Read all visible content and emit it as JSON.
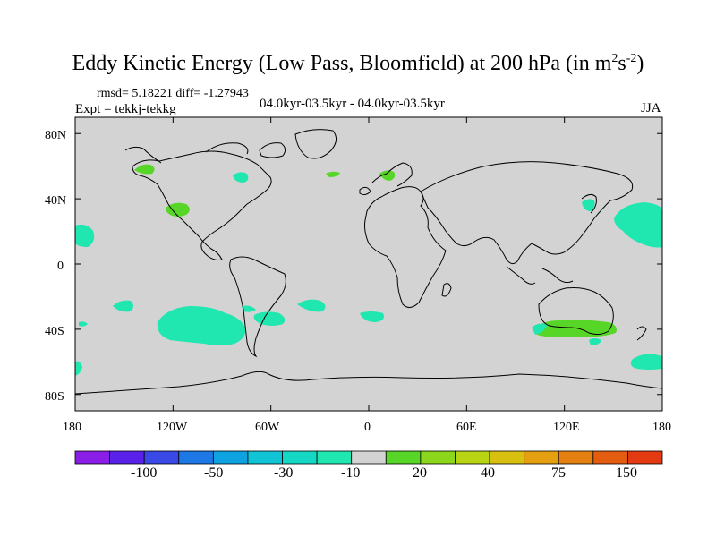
{
  "title": {
    "main": "Eddy Kinetic Energy (Low Pass, Bloomfield) at 200 hPa (in m",
    "sup1": "2",
    "mid": "s",
    "sup2": "-2",
    "end": ")"
  },
  "stats": "rmsd= 5.18221 diff= -1.27943",
  "expt": "Expt = tekkj-tekkg",
  "periods": "04.0kyr-03.5kyr - 04.0kyr-03.5kyr",
  "season": "JJA",
  "map": {
    "lon_range": [
      -180,
      180
    ],
    "lat_range": [
      -90,
      90
    ],
    "background_color": "#d3d3d3",
    "lat_labels": [
      "80N",
      "40N",
      "0",
      "40S",
      "80S"
    ],
    "lon_labels": [
      "180",
      "120W",
      "60W",
      "0",
      "60E",
      "120E",
      "180"
    ]
  },
  "colorbar": {
    "colors": [
      "#8a1ee6",
      "#5a22e8",
      "#3a48e6",
      "#1d78e6",
      "#0ea2e0",
      "#10c4d6",
      "#14d8c4",
      "#20e6b0",
      "#d3d3d3",
      "#58d628",
      "#8cd61c",
      "#b8d414",
      "#d8c010",
      "#e4a010",
      "#e48010",
      "#e45c10",
      "#e43a12"
    ],
    "labels": [
      "-100",
      "-50",
      "-30",
      "-10",
      "20",
      "40",
      "75",
      "150"
    ]
  },
  "regions": [
    {
      "name": "n-pacific-east",
      "level": -10,
      "color": "#20e6b0",
      "lon": -175,
      "lat": 22
    },
    {
      "name": "alaska",
      "level": 20,
      "color": "#58d628",
      "lon": -140,
      "lat": 60
    },
    {
      "name": "california",
      "level": 20,
      "color": "#58d628",
      "lon": -120,
      "lat": 36
    },
    {
      "name": "canada-east",
      "level": -10,
      "color": "#20e6b0",
      "lon": -78,
      "lat": 55
    },
    {
      "name": "n-atlantic",
      "level": 20,
      "color": "#58d628",
      "lon": -23,
      "lat": 57
    },
    {
      "name": "scandinavia",
      "level": 20,
      "color": "#58d628",
      "lon": 12,
      "lat": 56
    },
    {
      "name": "japan",
      "level": -10,
      "color": "#20e6b0",
      "lon": 140,
      "lat": 40
    },
    {
      "name": "nw-pacific",
      "level": -10,
      "color": "#20e6b0",
      "lon": 163,
      "lat": 24
    },
    {
      "name": "s-pacific-east",
      "level": -10,
      "color": "#20e6b0",
      "lon": -150,
      "lat": -25
    },
    {
      "name": "s-pacific",
      "level": -10,
      "color": "#20e6b0",
      "lon": -90,
      "lat": -38
    },
    {
      "name": "argentina",
      "level": -10,
      "color": "#20e6b0",
      "lon": -60,
      "lat": -33
    },
    {
      "name": "s-atlantic",
      "level": -10,
      "color": "#20e6b0",
      "lon": -30,
      "lat": -24
    },
    {
      "name": "s-indian-west",
      "level": -10,
      "color": "#20e6b0",
      "lon": 0,
      "lat": -31
    },
    {
      "name": "australia-south",
      "level": 20,
      "color": "#58d628",
      "lon": 115,
      "lat": -38
    },
    {
      "name": "tasman",
      "level": -10,
      "color": "#20e6b0",
      "lon": 140,
      "lat": -48
    },
    {
      "name": "south-tasman",
      "level": -10,
      "color": "#20e6b0",
      "lon": 155,
      "lat": -58
    }
  ]
}
